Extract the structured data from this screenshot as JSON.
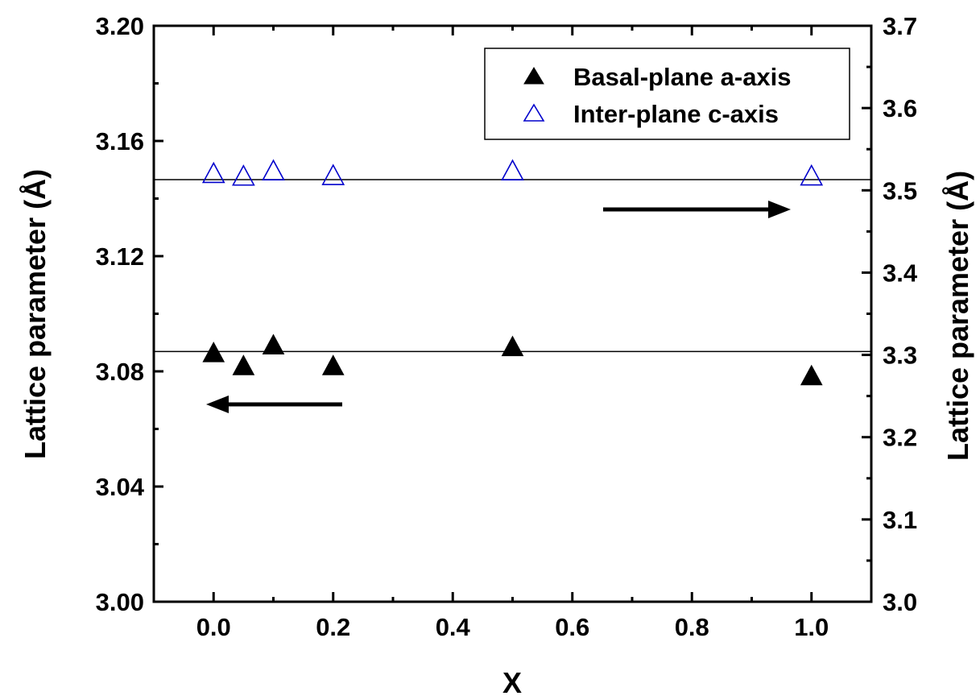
{
  "chart_data": {
    "type": "scatter",
    "x": [
      0.0,
      0.05,
      0.1,
      0.2,
      0.5,
      1.0
    ],
    "series": [
      {
        "name": "Basal-plane a-axis",
        "axis": "left",
        "marker": "filled-triangle",
        "color": "#000000",
        "values": [
          3.086,
          3.0815,
          3.0887,
          3.0815,
          3.0881,
          3.078
        ],
        "reference_line": 3.0869
      },
      {
        "name": "Inter-plane c-axis",
        "axis": "right",
        "marker": "open-triangle",
        "color": "#0000cc",
        "values": [
          3.519,
          3.5158,
          3.5222,
          3.5165,
          3.5222,
          3.516
        ],
        "reference_line": 3.513
      }
    ],
    "xlabel": "X",
    "ylabel_left": "Lattice parameter (Å)",
    "ylabel_right": "Lattice parameter (Å)",
    "xlim": [
      -0.1,
      1.1
    ],
    "ylim_left": [
      3.0,
      3.2
    ],
    "ylim_right": [
      3.0,
      3.7
    ],
    "x_ticks": [
      "0.0",
      "0.2",
      "0.4",
      "0.6",
      "0.8",
      "1.0"
    ],
    "y_ticks_left": [
      "3.00",
      "3.04",
      "3.08",
      "3.12",
      "3.16",
      "3.20"
    ],
    "y_ticks_right": [
      "3.0",
      "3.1",
      "3.2",
      "3.3",
      "3.4",
      "3.5",
      "3.6",
      "3.7"
    ],
    "legend_position": "top-right",
    "grid": false,
    "annotations": [
      {
        "kind": "arrow",
        "direction": "left",
        "meaning": "points to left axis (a-axis)"
      },
      {
        "kind": "arrow",
        "direction": "right",
        "meaning": "points to right axis (c-axis)"
      }
    ]
  }
}
